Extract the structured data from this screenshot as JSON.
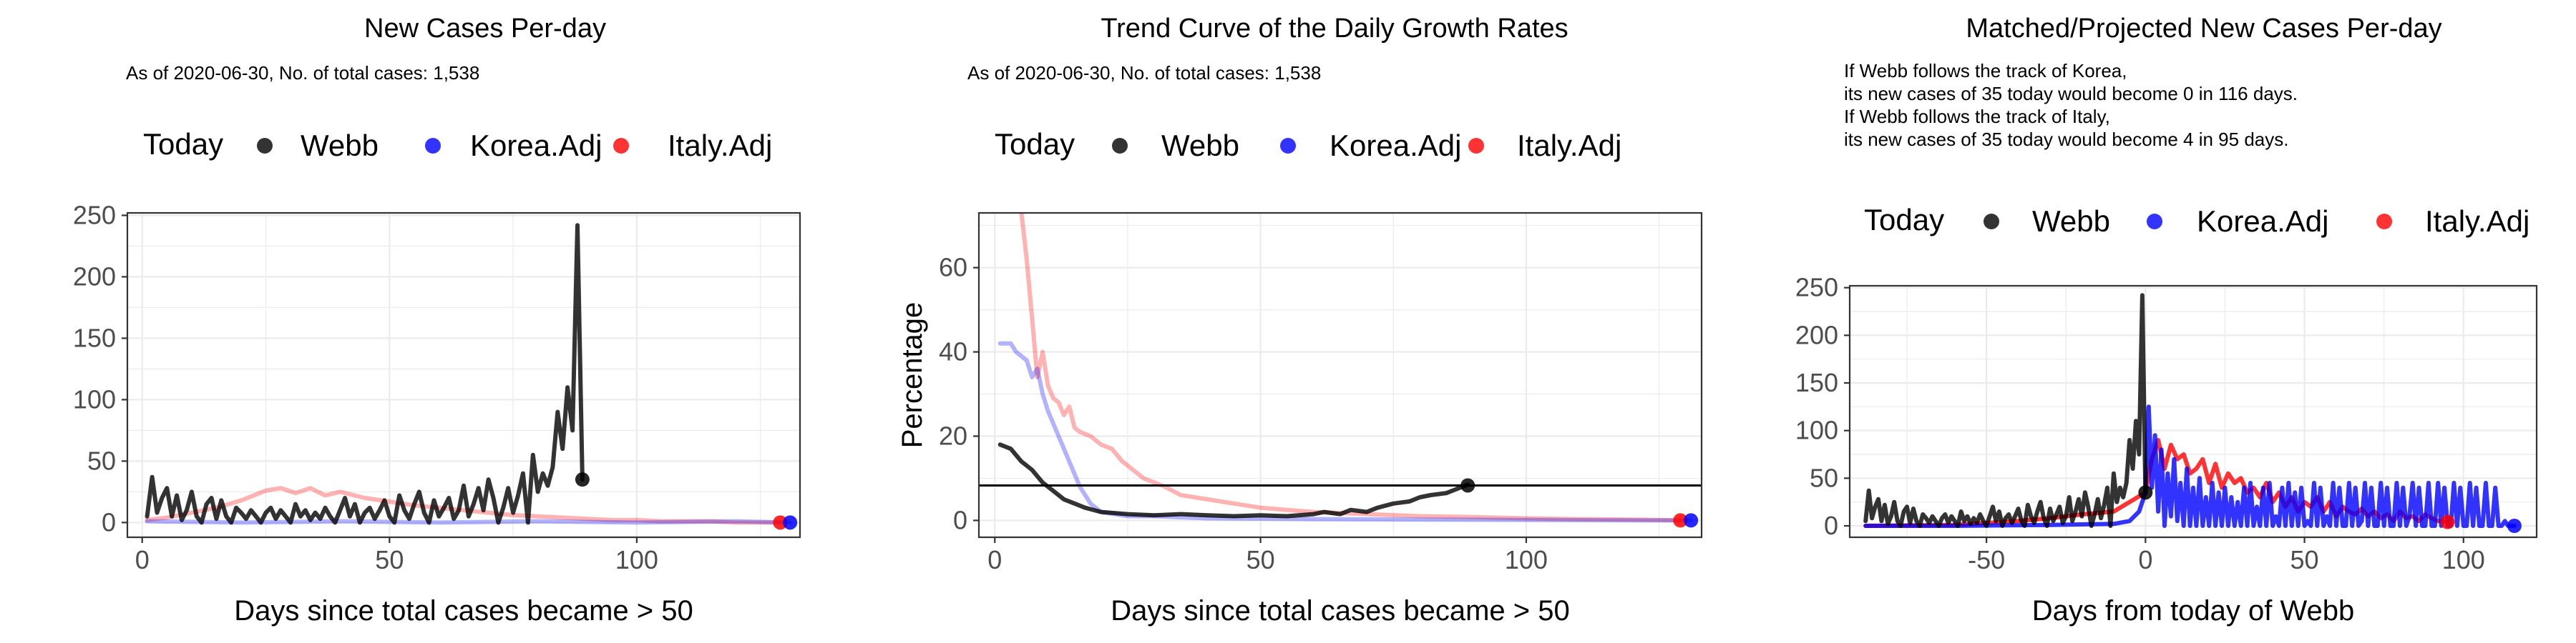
{
  "legend_labels": {
    "today": "Today",
    "webb": "Webb",
    "korea": "Korea.Adj",
    "italy": "Italy.Adj"
  },
  "colors": {
    "webb": "#000000",
    "korea": "#0000ff",
    "italy": "#ff0000",
    "hline": "#000000"
  },
  "chart_data": [
    {
      "type": "line",
      "title": "New Cases Per-day",
      "subtitle": "As of 2020-06-30, No. of total cases: 1,538",
      "xlabel": "Days since total cases became > 50",
      "ylabel": "",
      "xlim": [
        -3,
        133
      ],
      "ylim": [
        -12,
        252
      ],
      "xticks": [
        0,
        50,
        100
      ],
      "yticks": [
        0,
        50,
        100,
        150,
        200,
        250
      ],
      "grid": true,
      "legend_position": "top",
      "series": [
        {
          "name": "Webb",
          "color": "#000000",
          "opacity": 0.8,
          "x": [
            1,
            2,
            3,
            4,
            5,
            6,
            7,
            8,
            9,
            10,
            11,
            12,
            13,
            14,
            15,
            16,
            17,
            18,
            19,
            20,
            21,
            22,
            23,
            24,
            25,
            26,
            27,
            28,
            29,
            30,
            31,
            32,
            33,
            34,
            35,
            36,
            37,
            38,
            39,
            40,
            41,
            42,
            43,
            44,
            45,
            46,
            47,
            48,
            49,
            50,
            51,
            52,
            53,
            54,
            55,
            56,
            57,
            58,
            59,
            60,
            61,
            62,
            63,
            64,
            65,
            66,
            67,
            68,
            69,
            70,
            71,
            72,
            73,
            74,
            75,
            76,
            77,
            78,
            79,
            80,
            81,
            82,
            83,
            84,
            85,
            86,
            87,
            88,
            89
          ],
          "y": [
            5,
            37,
            8,
            20,
            28,
            5,
            22,
            2,
            10,
            25,
            5,
            0,
            15,
            20,
            3,
            18,
            5,
            0,
            12,
            8,
            3,
            10,
            5,
            0,
            8,
            12,
            3,
            10,
            5,
            0,
            15,
            5,
            10,
            2,
            8,
            3,
            12,
            5,
            0,
            10,
            20,
            5,
            15,
            0,
            8,
            12,
            3,
            10,
            18,
            5,
            0,
            22,
            10,
            3,
            15,
            25,
            8,
            0,
            18,
            5,
            12,
            20,
            3,
            10,
            30,
            5,
            15,
            28,
            10,
            35,
            20,
            0,
            12,
            28,
            8,
            22,
            40,
            0,
            55,
            25,
            40,
            30,
            45,
            90,
            60,
            110,
            75,
            242,
            35
          ]
        },
        {
          "name": "Korea.Adj",
          "color": "#0000ff",
          "opacity": 0.3,
          "x": [
            1,
            20,
            40,
            60,
            80,
            100,
            120,
            131
          ],
          "y": [
            1,
            0,
            1,
            0,
            1,
            0,
            1,
            0
          ]
        },
        {
          "name": "Italy.Adj",
          "color": "#ff0000",
          "opacity": 0.3,
          "x": [
            1,
            5,
            10,
            15,
            20,
            25,
            28,
            31,
            34,
            37,
            40,
            45,
            50,
            55,
            60,
            65,
            70,
            75,
            80,
            85,
            90,
            95,
            100,
            105,
            110,
            115,
            120,
            125,
            129
          ],
          "y": [
            2,
            4,
            8,
            12,
            18,
            26,
            28,
            24,
            28,
            22,
            25,
            20,
            17,
            14,
            12,
            10,
            8,
            6,
            5,
            4,
            3,
            2,
            2,
            1,
            1,
            1,
            0,
            0,
            0
          ]
        }
      ],
      "today_points": [
        {
          "series": "Webb",
          "x": 89,
          "y": 35,
          "color": "#000000"
        },
        {
          "series": "Italy.Adj",
          "x": 129,
          "y": 0,
          "color": "#ff0000"
        },
        {
          "series": "Korea.Adj",
          "x": 131,
          "y": 0,
          "color": "#0000ff"
        }
      ]
    },
    {
      "type": "line",
      "title": "Trend Curve of the Daily Growth Rates",
      "subtitle": "As of 2020-06-30, No. of total cases: 1,538",
      "xlabel": "Days since total cases became > 50",
      "ylabel": "Percentage",
      "xlim": [
        -3,
        133
      ],
      "ylim": [
        -4,
        73
      ],
      "xticks": [
        0,
        50,
        100
      ],
      "yticks": [
        0,
        20,
        40,
        60
      ],
      "grid": true,
      "legend_position": "top",
      "hline": 8.3,
      "series": [
        {
          "name": "Webb",
          "color": "#000000",
          "opacity": 0.8,
          "x": [
            1,
            3,
            5,
            7,
            9,
            11,
            13,
            15,
            17,
            20,
            25,
            30,
            35,
            40,
            45,
            50,
            55,
            60,
            62,
            65,
            67,
            70,
            72,
            75,
            78,
            80,
            82,
            85,
            87,
            89
          ],
          "y": [
            18,
            17,
            14,
            12,
            9,
            7,
            5,
            4,
            3,
            2,
            1.5,
            1.2,
            1.5,
            1.2,
            1.0,
            1.2,
            1.0,
            1.5,
            2,
            1.5,
            2.5,
            2,
            3,
            4,
            4.5,
            5.5,
            6,
            6.5,
            7.5,
            8.5
          ]
        },
        {
          "name": "Korea.Adj",
          "color": "#0000ff",
          "opacity": 0.3,
          "x": [
            1,
            3,
            4,
            6,
            7,
            8,
            9,
            10,
            12,
            14,
            16,
            18,
            20,
            25,
            30,
            40,
            60,
            80,
            100,
            120,
            131
          ],
          "y": [
            42,
            42,
            40,
            38,
            34,
            36,
            30,
            26,
            20,
            14,
            8,
            4,
            2,
            1,
            1,
            0.5,
            0.3,
            0.2,
            0.1,
            0,
            0
          ]
        },
        {
          "name": "Italy.Adj",
          "color": "#ff0000",
          "opacity": 0.3,
          "x": [
            5,
            6,
            7,
            8,
            9,
            10,
            11,
            12,
            13,
            14,
            15,
            16,
            18,
            20,
            22,
            24,
            26,
            28,
            30,
            32,
            35,
            40,
            45,
            50,
            55,
            60,
            70,
            80,
            90,
            100,
            110,
            120,
            129
          ],
          "y": [
            73,
            62,
            48,
            34,
            40,
            32,
            29,
            28,
            25,
            27,
            22,
            21,
            20,
            18,
            17,
            14,
            12,
            10,
            9,
            8,
            6,
            5,
            4,
            3,
            2.5,
            2,
            1.5,
            1,
            0.8,
            0.5,
            0.3,
            0.2,
            0
          ]
        }
      ],
      "today_points": [
        {
          "series": "Webb",
          "x": 89,
          "y": 8.3,
          "color": "#000000"
        },
        {
          "series": "Italy.Adj",
          "x": 129,
          "y": 0,
          "color": "#ff0000"
        },
        {
          "series": "Korea.Adj",
          "x": 131,
          "y": 0,
          "color": "#0000ff"
        }
      ]
    },
    {
      "type": "line",
      "title": "Matched/Projected New Cases Per-day",
      "annotation": [
        "If Webb follows the track of Korea,",
        "its new cases of 35 today would become 0 in 116 days.",
        "If Webb follows the track of Italy,",
        "its new cases of 35 today would become 4 in 95 days."
      ],
      "xlabel": "Days from today of Webb",
      "ylabel": "",
      "xlim": [
        -93,
        123
      ],
      "ylim": [
        -12,
        252
      ],
      "xticks": [
        -50,
        0,
        50,
        100
      ],
      "yticks": [
        0,
        50,
        100,
        150,
        200,
        250
      ],
      "grid": true,
      "legend_position": "top",
      "series": [
        {
          "name": "Webb",
          "color": "#000000",
          "opacity": 0.8,
          "x": [
            -88,
            -87,
            -86,
            -85,
            -84,
            -83,
            -82,
            -81,
            -80,
            -79,
            -78,
            -77,
            -76,
            -75,
            -74,
            -73,
            -72,
            -71,
            -70,
            -69,
            -68,
            -67,
            -66,
            -65,
            -64,
            -63,
            -62,
            -61,
            -60,
            -59,
            -58,
            -57,
            -56,
            -55,
            -54,
            -53,
            -52,
            -51,
            -50,
            -49,
            -48,
            -47,
            -46,
            -45,
            -44,
            -43,
            -42,
            -41,
            -40,
            -39,
            -38,
            -37,
            -36,
            -35,
            -34,
            -33,
            -32,
            -31,
            -30,
            -29,
            -28,
            -27,
            -26,
            -25,
            -24,
            -23,
            -22,
            -21,
            -20,
            -19,
            -18,
            -17,
            -16,
            -15,
            -14,
            -13,
            -12,
            -11,
            -10,
            -9,
            -8,
            -7,
            -6,
            -5,
            -4,
            -3,
            -2,
            -1,
            0
          ],
          "y": [
            5,
            37,
            8,
            20,
            28,
            5,
            22,
            2,
            10,
            25,
            5,
            0,
            15,
            20,
            3,
            18,
            5,
            0,
            12,
            8,
            3,
            10,
            5,
            0,
            8,
            12,
            3,
            10,
            5,
            0,
            15,
            5,
            10,
            2,
            8,
            3,
            12,
            5,
            0,
            10,
            20,
            5,
            15,
            0,
            8,
            12,
            3,
            10,
            18,
            5,
            0,
            22,
            10,
            3,
            15,
            25,
            8,
            0,
            18,
            5,
            12,
            20,
            3,
            10,
            30,
            5,
            15,
            28,
            10,
            35,
            20,
            0,
            12,
            28,
            8,
            22,
            40,
            0,
            55,
            25,
            40,
            30,
            45,
            90,
            60,
            110,
            75,
            242,
            35
          ]
        },
        {
          "name": "Korea.Adj",
          "color": "#0000ff",
          "opacity": 0.8,
          "x": [
            -88,
            -60,
            -30,
            -10,
            -5,
            -2,
            0,
            1,
            2,
            3,
            4,
            5,
            6,
            7,
            8,
            9,
            10,
            11,
            12,
            13,
            14,
            15,
            16,
            17,
            18,
            19,
            20,
            21,
            22,
            23,
            24,
            25,
            26,
            27,
            28,
            29,
            30,
            31,
            32,
            33,
            34,
            35,
            36,
            37,
            38,
            39,
            40,
            41,
            42,
            43,
            44,
            45,
            46,
            47,
            48,
            49,
            50,
            51,
            52,
            53,
            54,
            55,
            56,
            57,
            58,
            59,
            60,
            61,
            62,
            63,
            64,
            65,
            66,
            67,
            68,
            69,
            70,
            71,
            72,
            73,
            74,
            75,
            76,
            77,
            78,
            79,
            80,
            81,
            82,
            83,
            84,
            85,
            86,
            87,
            88,
            89,
            90,
            91,
            92,
            93,
            94,
            95,
            96,
            97,
            98,
            99,
            100,
            101,
            102,
            103,
            104,
            105,
            106,
            107,
            108,
            109,
            110,
            111,
            112,
            113,
            114,
            115,
            116
          ],
          "y": [
            0,
            0,
            1,
            2,
            5,
            15,
            35,
            125,
            40,
            95,
            15,
            80,
            0,
            55,
            10,
            70,
            5,
            45,
            0,
            60,
            0,
            40,
            0,
            50,
            0,
            30,
            0,
            45,
            0,
            35,
            0,
            40,
            0,
            30,
            0,
            25,
            0,
            40,
            0,
            45,
            0,
            20,
            0,
            40,
            0,
            45,
            0,
            10,
            0,
            40,
            0,
            45,
            0,
            35,
            0,
            40,
            0,
            5,
            0,
            45,
            0,
            40,
            0,
            10,
            0,
            45,
            0,
            40,
            0,
            0,
            45,
            0,
            40,
            0,
            5,
            45,
            0,
            40,
            0,
            0,
            45,
            0,
            40,
            0,
            0,
            45,
            0,
            40,
            0,
            10,
            45,
            0,
            40,
            0,
            0,
            45,
            0,
            0,
            45,
            0,
            40,
            0,
            0,
            45,
            0,
            40,
            0,
            0,
            45,
            0,
            40,
            0,
            0,
            45,
            0,
            0,
            40,
            0,
            0,
            5,
            0,
            0,
            0
          ]
        },
        {
          "name": "Italy.Adj",
          "color": "#ff0000",
          "opacity": 0.8,
          "x": [
            -88,
            -60,
            -40,
            -30,
            -20,
            -10,
            -5,
            0,
            2,
            4,
            6,
            8,
            10,
            12,
            14,
            16,
            18,
            20,
            22,
            24,
            26,
            28,
            30,
            32,
            34,
            36,
            38,
            40,
            42,
            44,
            46,
            48,
            50,
            52,
            54,
            56,
            58,
            60,
            62,
            64,
            66,
            68,
            70,
            72,
            74,
            76,
            78,
            80,
            82,
            84,
            86,
            88,
            90,
            92,
            95
          ],
          "y": [
            0,
            1,
            5,
            8,
            12,
            15,
            25,
            35,
            70,
            90,
            60,
            85,
            70,
            75,
            55,
            60,
            70,
            45,
            65,
            40,
            55,
            45,
            50,
            35,
            40,
            30,
            45,
            25,
            35,
            20,
            30,
            15,
            25,
            20,
            30,
            15,
            25,
            10,
            20,
            15,
            12,
            18,
            10,
            15,
            8,
            12,
            5,
            15,
            8,
            10,
            5,
            12,
            8,
            5,
            4
          ]
        }
      ],
      "today_points": [
        {
          "series": "Webb",
          "x": 0,
          "y": 35,
          "color": "#000000"
        },
        {
          "series": "Italy.Adj",
          "x": 95,
          "y": 4,
          "color": "#ff0000"
        },
        {
          "series": "Korea.Adj",
          "x": 116,
          "y": 0,
          "color": "#0000ff"
        }
      ]
    }
  ]
}
